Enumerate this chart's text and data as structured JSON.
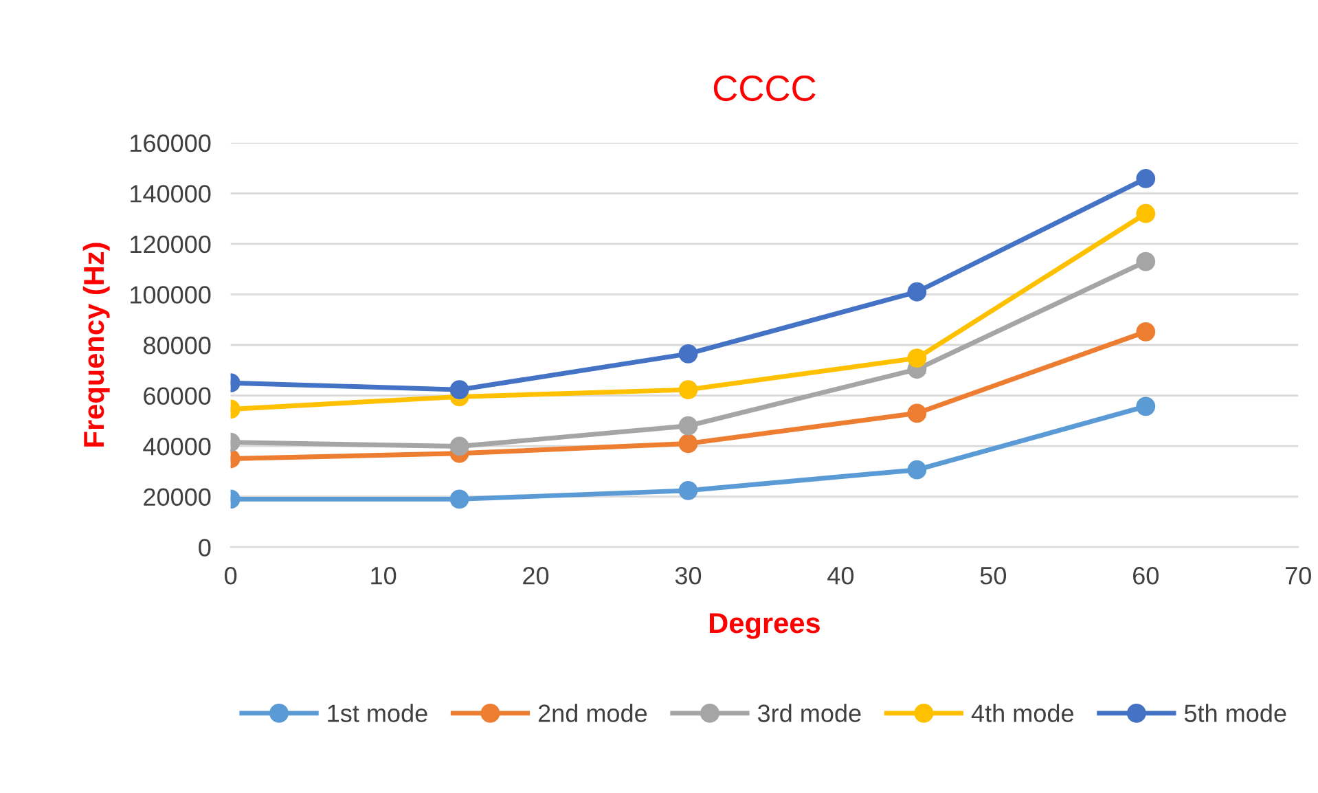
{
  "chart_data": {
    "type": "line",
    "title": "CCCC",
    "xlabel": "Degrees",
    "ylabel": "Frequency (Hz)",
    "x": [
      0,
      15,
      30,
      45,
      60
    ],
    "series": [
      {
        "name": "1st mode",
        "color": "#5b9bd5",
        "values": [
          19000,
          19000,
          22400,
          30600,
          55700
        ]
      },
      {
        "name": "2nd mode",
        "color": "#ed7d31",
        "values": [
          35000,
          37100,
          41000,
          53000,
          85200
        ]
      },
      {
        "name": "3rd mode",
        "color": "#a5a5a5",
        "values": [
          41500,
          39900,
          48000,
          70400,
          113000
        ]
      },
      {
        "name": "4th mode",
        "color": "#ffc000",
        "values": [
          54600,
          59500,
          62300,
          74800,
          132000
        ]
      },
      {
        "name": "5th mode",
        "color": "#4472c4",
        "values": [
          65000,
          62300,
          76500,
          101000,
          145800
        ]
      }
    ],
    "xlim": [
      0,
      70
    ],
    "xticks": [
      0,
      10,
      20,
      30,
      40,
      50,
      60,
      70
    ],
    "ylim": [
      0,
      160000
    ],
    "yticks": [
      0,
      20000,
      40000,
      60000,
      80000,
      100000,
      120000,
      140000,
      160000
    ],
    "grid": "y",
    "legend": "bottom",
    "marker": "circle",
    "line_style": "solid"
  }
}
